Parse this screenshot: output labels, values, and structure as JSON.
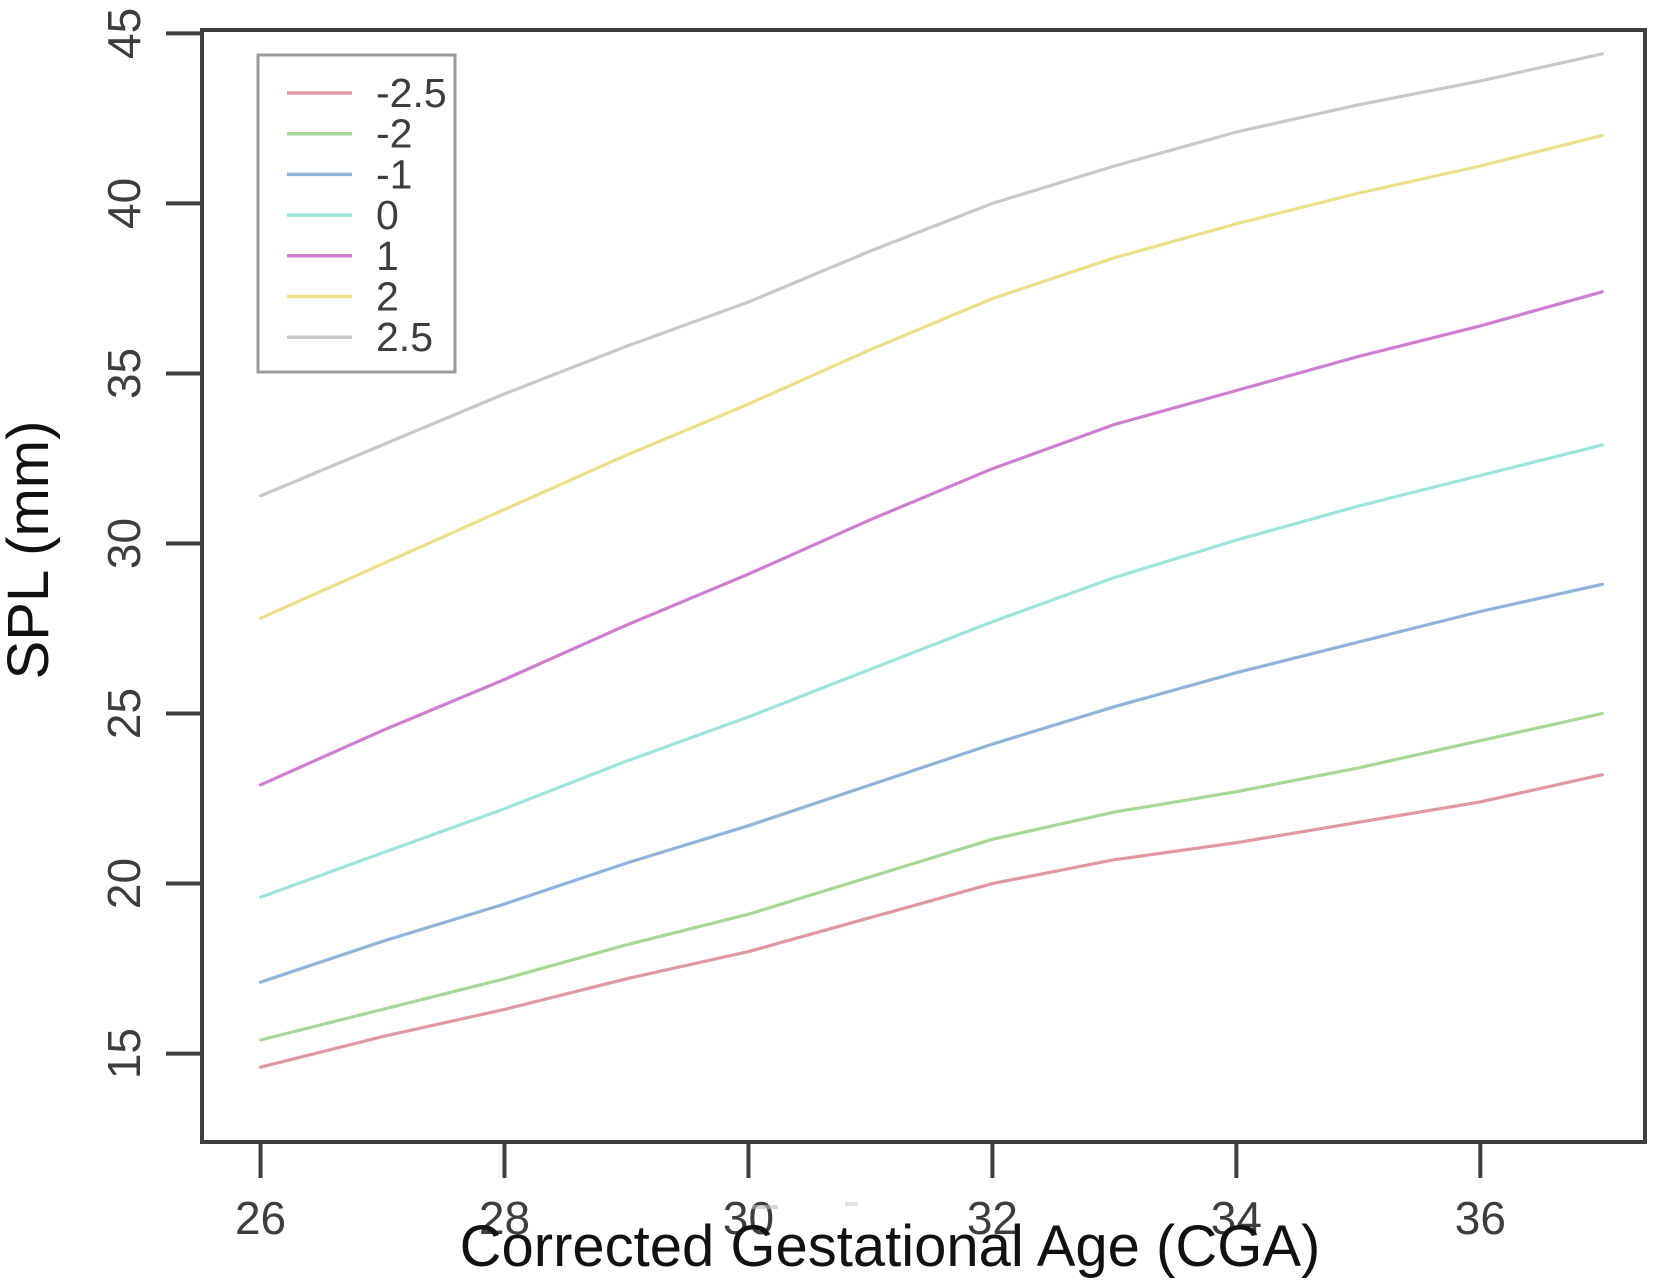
{
  "chart_data": {
    "type": "line",
    "title": "",
    "xlabel": "Corrected Gestational Age (CGA)",
    "ylabel": "SPL (mm)",
    "xlim": [
      25.52,
      37.35
    ],
    "ylim": [
      12.4,
      45.1
    ],
    "xticks": [
      26,
      28,
      30,
      32,
      34,
      36
    ],
    "yticks": [
      15,
      20,
      25,
      30,
      35,
      40,
      45
    ],
    "grid": false,
    "legend_position": "top-left",
    "x": [
      26,
      27,
      28,
      29,
      30,
      31,
      32,
      33,
      34,
      35,
      36,
      37
    ],
    "series": [
      {
        "name": "-2.5",
        "color": "#df97a2",
        "values": [
          14.6,
          15.5,
          16.3,
          17.2,
          18.0,
          19.0,
          20.0,
          20.7,
          21.2,
          21.8,
          22.4,
          23.2
        ]
      },
      {
        "name": "-2",
        "color": "#a7d795",
        "values": [
          15.4,
          16.3,
          17.2,
          18.2,
          19.1,
          20.2,
          21.3,
          22.1,
          22.7,
          23.4,
          24.2,
          25.0
        ]
      },
      {
        "name": "-1",
        "color": "#8fb3da",
        "values": [
          17.1,
          18.3,
          19.4,
          20.6,
          21.7,
          22.9,
          24.1,
          25.2,
          26.2,
          27.1,
          28.0,
          28.8
        ]
      },
      {
        "name": "0",
        "color": "#9ce4dc",
        "values": [
          19.6,
          20.9,
          22.2,
          23.6,
          24.9,
          26.3,
          27.7,
          29.0,
          30.1,
          31.1,
          32.0,
          32.9
        ]
      },
      {
        "name": "1",
        "color": "#ce7ed0",
        "values": [
          22.9,
          24.5,
          26.0,
          27.6,
          29.1,
          30.7,
          32.2,
          33.5,
          34.5,
          35.5,
          36.4,
          37.4
        ]
      },
      {
        "name": "2",
        "color": "#ebe08a",
        "values": [
          27.8,
          29.4,
          31.0,
          32.6,
          34.1,
          35.7,
          37.2,
          38.4,
          39.4,
          40.3,
          41.1,
          42.0
        ]
      },
      {
        "name": "2.5",
        "color": "#c8c8c8",
        "values": [
          31.4,
          32.9,
          34.4,
          35.8,
          37.1,
          38.6,
          40.0,
          41.1,
          42.1,
          42.9,
          43.6,
          44.4
        ]
      }
    ]
  },
  "styling": {
    "axis_color": "#3f3f3f",
    "tick_label_color": "#4a4a4a",
    "legend_border_color": "#9a9a9a"
  }
}
